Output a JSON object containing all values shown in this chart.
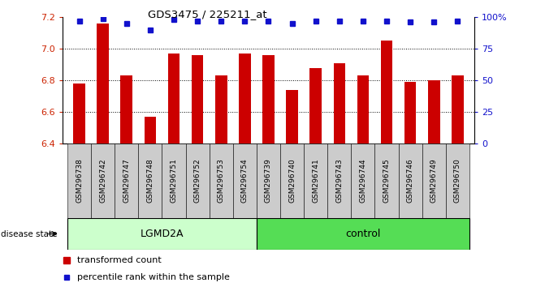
{
  "title": "GDS3475 / 225211_at",
  "samples": [
    "GSM296738",
    "GSM296742",
    "GSM296747",
    "GSM296748",
    "GSM296751",
    "GSM296752",
    "GSM296753",
    "GSM296754",
    "GSM296739",
    "GSM296740",
    "GSM296741",
    "GSM296743",
    "GSM296744",
    "GSM296745",
    "GSM296746",
    "GSM296749",
    "GSM296750"
  ],
  "bar_values": [
    6.78,
    7.16,
    6.83,
    6.57,
    6.97,
    6.96,
    6.83,
    6.97,
    6.96,
    6.74,
    6.88,
    6.91,
    6.83,
    7.05,
    6.79,
    6.8,
    6.83
  ],
  "percentile_values": [
    97,
    99,
    95,
    90,
    98,
    97,
    97,
    97,
    97,
    95,
    97,
    97,
    97,
    97,
    96,
    96,
    97
  ],
  "bar_color": "#cc0000",
  "percentile_color": "#1111cc",
  "ylim_left": [
    6.4,
    7.2
  ],
  "ylim_right": [
    0,
    100
  ],
  "yticks_left": [
    6.4,
    6.6,
    6.8,
    7.0,
    7.2
  ],
  "yticks_right": [
    0,
    25,
    50,
    75,
    100
  ],
  "ytick_labels_right": [
    "0",
    "25",
    "50",
    "75",
    "100%"
  ],
  "group_LGMD2A": [
    "GSM296738",
    "GSM296742",
    "GSM296747",
    "GSM296748",
    "GSM296751",
    "GSM296752",
    "GSM296753",
    "GSM296754"
  ],
  "group_control": [
    "GSM296739",
    "GSM296740",
    "GSM296741",
    "GSM296743",
    "GSM296744",
    "GSM296745",
    "GSM296746",
    "GSM296749",
    "GSM296750"
  ],
  "group_LGMD2A_color": "#ccffcc",
  "group_control_color": "#55dd55",
  "group_LGMD2A_label": "LGMD2A",
  "group_control_label": "control",
  "disease_state_label": "disease state",
  "legend_bar_label": "transformed count",
  "legend_pct_label": "percentile rank within the sample",
  "background_color": "#ffffff",
  "tick_label_color_left": "#cc2200",
  "tick_label_color_right": "#1111cc",
  "bar_width": 0.5,
  "xtick_bg_color": "#cccccc"
}
